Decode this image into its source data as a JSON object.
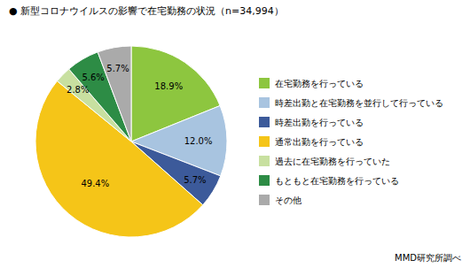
{
  "chart_data": {
    "type": "pie",
    "title": "●  新型コロナウイルスの影響で在宅勤務の状況（n=34,994）",
    "categories": [
      "在宅勤務を行っている",
      "時差出勤と在宅勤務を並行して行っている",
      "時差出勤を行っている",
      "通常出勤を行っている",
      "過去に在宅勤務を行っていた",
      "もともと在宅勤務を行っている",
      "その他"
    ],
    "values": [
      18.9,
      12.0,
      5.7,
      49.4,
      2.8,
      5.6,
      5.7
    ],
    "value_labels": [
      "18.9%",
      "12.0%",
      "5.7%",
      "49.4%",
      "2.8%",
      "5.6%",
      "5.7%"
    ],
    "colors": [
      "#8dc63f",
      "#a8c4e0",
      "#3c5a9a",
      "#f5c518",
      "#c8e0a0",
      "#2d8c45",
      "#aaaaaa"
    ],
    "data_labels": true,
    "legend": "right",
    "annotations": [
      "MMD研究所調べ"
    ]
  }
}
